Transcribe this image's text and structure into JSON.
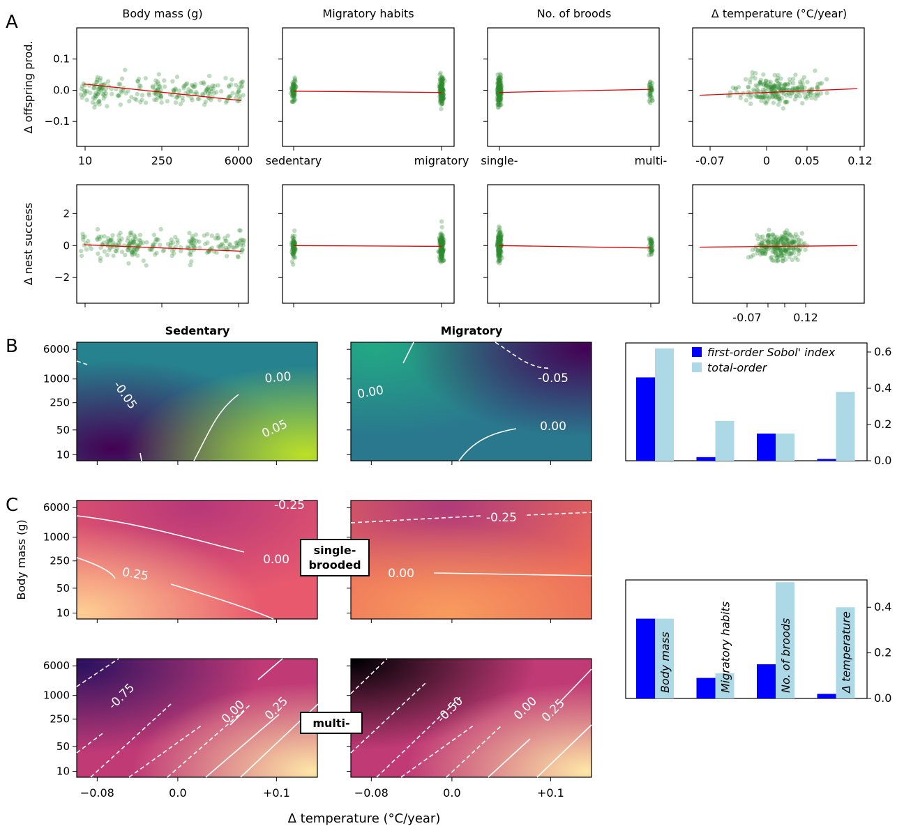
{
  "figure": {
    "panel_labels": [
      "A",
      "B",
      "C"
    ],
    "col_titles": [
      "Body mass (g)",
      "Migratory habits",
      "No. of broods",
      "Δ temperature (°C/year)"
    ],
    "row_ylabels": [
      "Δ offspring prod.",
      "Δ nest success"
    ],
    "map_titles": [
      "Sedentary",
      "Migratory"
    ],
    "c_ylabel": "Body mass (g)",
    "bottom_xlabel": "Δ temperature (°C/year)",
    "brood_labels": [
      "single-\nbrooded",
      "multi-"
    ]
  },
  "chart_data": [
    {
      "id": "A-scatter",
      "type": "scatter",
      "rows": [
        "Δ offspring prod.",
        "Δ nest success"
      ],
      "columns": [
        {
          "title": "Body mass (g)",
          "xticks": [
            "10",
            "250",
            "6000"
          ],
          "scale": "log"
        },
        {
          "title": "Migratory habits",
          "xticks": [
            "sedentary",
            "migratory"
          ],
          "categorical": true
        },
        {
          "title": "No. of broods",
          "xticks": [
            "single-",
            "multi-"
          ],
          "categorical": true
        },
        {
          "title": "Δ temperature (°C/year)",
          "xticks_row1": [
            "-0.07",
            "0",
            "0.05",
            "0.12"
          ],
          "xticks_row2": [
            "-0.07",
            "0.12"
          ]
        }
      ],
      "row1_yticks": [
        "0.1",
        "0.0",
        "−0.1"
      ],
      "row2_yticks": [
        "2",
        "0",
        "−2"
      ],
      "row1_ylim": [
        -0.18,
        0.2
      ],
      "row2_ylim": [
        -3.6,
        3.8
      ],
      "fit_lines": {
        "row1": [
          [
            0.02,
            -0.033
          ],
          [
            -0.003,
            -0.007
          ],
          [
            -0.007,
            0.003
          ],
          [
            -0.016,
            0.005
          ]
        ],
        "row2": [
          [
            0.05,
            -0.35
          ],
          [
            0.0,
            -0.05
          ],
          [
            0.0,
            -0.15
          ],
          [
            -0.1,
            0.0
          ]
        ]
      },
      "point_color": "#2e8b2e",
      "fit_color": "#e00000"
    },
    {
      "id": "B-maps",
      "type": "heatmap",
      "titles": [
        "Sedentary",
        "Migratory"
      ],
      "yticks": [
        "6000",
        "1000",
        "250",
        "50",
        "10"
      ],
      "contour_labels": [
        [
          "0.00",
          "-0.05",
          "0.05"
        ],
        [
          "0.00",
          "-0.05",
          "0.00"
        ]
      ],
      "colormap": "viridis"
    },
    {
      "id": "B-sobol",
      "type": "bar",
      "categories": [
        "Body mass",
        "Migratory habits",
        "No. of broods",
        "Δ temperature"
      ],
      "series": [
        {
          "name": "first-order Sobol' index",
          "values": [
            0.46,
            0.02,
            0.15,
            0.01
          ],
          "color": "#0000ff"
        },
        {
          "name": "total-order",
          "values": [
            0.62,
            0.22,
            0.15,
            0.38
          ],
          "color": "#add8e6"
        }
      ],
      "ylim": [
        0,
        0.65
      ],
      "yticks": [
        "0.0",
        "0.2",
        "0.4",
        "0.6"
      ]
    },
    {
      "id": "C-maps",
      "type": "heatmap",
      "rows": [
        "single-brooded",
        "multi-"
      ],
      "yticks": [
        "6000",
        "1000",
        "250",
        "50",
        "10"
      ],
      "xticks": [
        "−0.08",
        "0.0",
        "+0.1"
      ],
      "contour_labels": [
        [
          "-0.25",
          "0.00",
          "0.25"
        ],
        [
          "-0.25",
          "0.00"
        ],
        [
          "-0.75",
          "0.00",
          "0.25"
        ],
        [
          "-0.50",
          "0.00",
          "0.25"
        ]
      ],
      "colormap": "magma"
    },
    {
      "id": "C-sobol",
      "type": "bar",
      "categories": [
        "Body mass",
        "Migratory habits",
        "No. of broods",
        "Δ temperature"
      ],
      "series": [
        {
          "name": "first-order Sobol' index",
          "values": [
            0.35,
            0.09,
            0.15,
            0.02
          ],
          "color": "#0000ff"
        },
        {
          "name": "total-order",
          "values": [
            0.35,
            0.11,
            0.51,
            0.4
          ],
          "color": "#add8e6"
        }
      ],
      "ylim": [
        0,
        0.52
      ],
      "yticks": [
        "0.0",
        "0.2",
        "0.4"
      ]
    }
  ]
}
